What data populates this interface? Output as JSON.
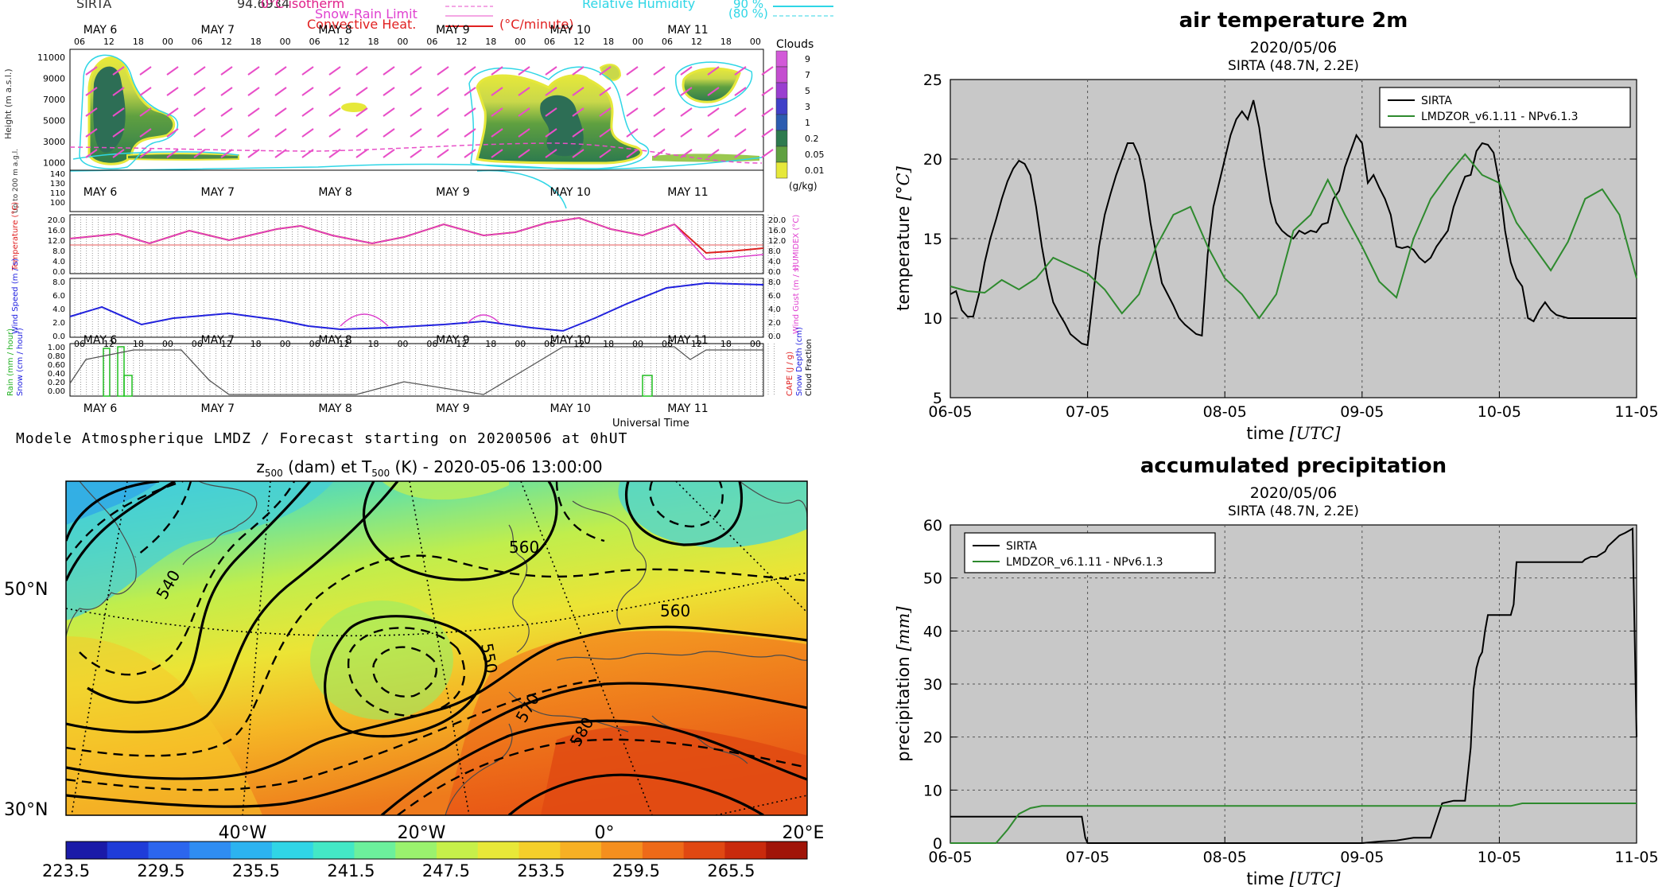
{
  "meteogram": {
    "station": "SIRTA",
    "code": "94.6934",
    "legend": {
      "isotherm": "0°C isotherm",
      "snow_rain": "Snow-Rain Limit",
      "convective": "Convective Heat.",
      "unit": "(°C/minute)",
      "rh_label": "Relative Humidity",
      "rh1": "90 %",
      "rh2": "(80 %)"
    },
    "days": [
      "MAY 6",
      "MAY 7",
      "MAY 8",
      "MAY 9",
      "MAY 10",
      "MAY 11"
    ],
    "hours": [
      "06",
      "12",
      "18",
      "00"
    ],
    "clouds_title": "Clouds",
    "clouds_levels": [
      "9",
      "7",
      "5",
      "3",
      "1",
      "0.2",
      "0.05",
      "0.01"
    ],
    "clouds_unit": "(g/kg)",
    "height_label": "Height (m a.s.l.)",
    "height_ticks": [
      "11000",
      "9000",
      "7000",
      "5000",
      "3000",
      "1000"
    ],
    "low_label": "Up to 200 m a.g.l.",
    "low_ticks": [
      "140",
      "130",
      "110",
      "100"
    ],
    "temp_label": "Temperature (°C)",
    "temp_ticks": [
      "20.0",
      "16.0",
      "12.0",
      "8.0",
      "4.0",
      "0.0"
    ],
    "humidex_label": "HUMIDEX (°C)",
    "wind_label": "Wind Speed (m / s)",
    "wind_ticks": [
      "8.0",
      "6.0",
      "4.0",
      "2.0",
      "0.0"
    ],
    "gust_label": "Wind Gust (m / s)",
    "rain_ticks": [
      "1.00",
      "0.80",
      "0.60",
      "0.40",
      "0.20",
      "0.00"
    ],
    "rain_label": "Rain (mm / hour)",
    "snow_label": "Snow (cm / hour)",
    "cape_label": "CAPE (J / g)",
    "snowdepth_label": "Snow Depth (cm)",
    "cloudfrac_label": "Cloud Fraction",
    "universal_time": "Universal Time",
    "caption": "Modele Atmospherique LMDZ / Forecast starting on 20200506 at 0hUT"
  },
  "map": {
    "title_pre": "z",
    "title_sub1": "500",
    "title_mid": " (dam) et T",
    "title_sub2": "500",
    "title_post": " (K) - 2020-05-06 13:00:00",
    "lat_labels": [
      "50°N",
      "30°N"
    ],
    "lon_labels": [
      "40°W",
      "20°W",
      "0°",
      "20°E"
    ],
    "contour_labels": [
      "540",
      "560",
      "550",
      "560",
      "570",
      "580"
    ],
    "colorbar_ticks": [
      "223.5",
      "229.5",
      "235.5",
      "241.5",
      "247.5",
      "253.5",
      "259.5",
      "265.5"
    ],
    "colorbar_colors": [
      "#1a1aa8",
      "#1f3cd8",
      "#2c66ee",
      "#2f8df2",
      "#2cb3f0",
      "#30d5e6",
      "#43e8c6",
      "#6cf09c",
      "#9af26e",
      "#c6f04a",
      "#e8e838",
      "#f5cf2a",
      "#f7b024",
      "#f58f1e",
      "#ee6a18",
      "#e04812",
      "#c92a0c",
      "#a01408"
    ]
  },
  "chart_data": [
    {
      "type": "line",
      "title": "air temperature 2m",
      "subtitle_date": "2020/05/06",
      "subtitle_site": "SIRTA (48.7N, 2.2E)",
      "xlabel": "time",
      "xunit": "UTC",
      "ylabel": "temperature",
      "yunit": "°C",
      "ylim": [
        5,
        25
      ],
      "yticks": [
        "5",
        "10",
        "15",
        "20",
        "25"
      ],
      "xlim": [
        0,
        120
      ],
      "xticks": [
        "06-05",
        "07-05",
        "08-05",
        "09-05",
        "10-05",
        "11-05"
      ],
      "grid": true,
      "legend_position": "top-right",
      "series": [
        {
          "name": "SIRTA",
          "color": "#000000",
          "x": [
            0,
            1,
            2,
            3,
            4,
            5,
            6,
            7,
            8,
            9,
            10,
            11,
            12,
            13,
            14,
            15,
            16,
            17,
            18,
            19,
            20,
            21,
            22,
            23,
            24,
            25,
            26,
            27,
            28,
            29,
            30,
            31,
            32,
            33,
            34,
            35,
            36,
            37,
            38,
            39,
            40,
            41,
            42,
            43,
            44,
            45,
            46,
            47,
            48,
            49,
            50,
            51,
            52,
            53,
            54,
            55,
            56,
            57,
            58,
            59,
            60,
            61,
            62,
            63,
            64,
            65,
            66,
            67,
            68,
            69,
            70,
            71,
            72,
            73,
            74,
            75,
            76,
            77,
            78,
            79,
            80,
            81,
            82,
            83,
            84,
            85,
            86,
            87,
            88,
            89,
            90,
            91,
            92,
            93,
            94,
            95,
            96,
            97,
            98,
            99,
            100,
            101,
            102,
            103,
            104,
            105,
            106,
            107,
            108,
            109,
            110,
            111,
            112,
            113,
            114,
            115,
            116,
            117,
            118,
            119,
            120
          ],
          "y": [
            11.5,
            11.7,
            10.5,
            10.1,
            10.1,
            11.5,
            13.5,
            15,
            16.2,
            17.5,
            18.6,
            19.4,
            19.9,
            19.7,
            19,
            17,
            14.5,
            12.5,
            11,
            10.3,
            9.7,
            9,
            8.7,
            8.4,
            8.3,
            11.5,
            14.5,
            16.5,
            17.8,
            19,
            20,
            21,
            21,
            20.2,
            18.5,
            16,
            14,
            12.2,
            11.5,
            10.8,
            10,
            9.6,
            9.3,
            9,
            8.9,
            14,
            17,
            18.5,
            20,
            21.5,
            22.5,
            23,
            22.5,
            23.7,
            22,
            19.5,
            17.3,
            16,
            15.5,
            15.2,
            15,
            15.5,
            15.3,
            15.5,
            15.4,
            15.9,
            16,
            17.5,
            18,
            19.5,
            20.5,
            21.5,
            21,
            18.5,
            19,
            18.2,
            17.5,
            16.5,
            14.5,
            14.4,
            14.5,
            14.3,
            13.8,
            13.5,
            13.8,
            14.5,
            15,
            15.5,
            17,
            18,
            18.9,
            19,
            20.5,
            21,
            20.9,
            20.4,
            18.5,
            15.5,
            13.5,
            12.5,
            12,
            10,
            9.8,
            10.5,
            11,
            10.5,
            10.2,
            10.1,
            10,
            10,
            10,
            10,
            10,
            10,
            10,
            10,
            10,
            10,
            10,
            10,
            10
          ]
        },
        {
          "name": "LMDZOR_v6.1.11 - NPv6.1.3",
          "color": "#2e8a2e",
          "x": [
            0,
            3,
            6,
            9,
            12,
            15,
            18,
            21,
            24,
            27,
            30,
            33,
            36,
            39,
            42,
            45,
            48,
            51,
            54,
            57,
            60,
            63,
            66,
            69,
            72,
            75,
            78,
            81,
            84,
            87,
            90,
            93,
            96,
            99,
            102,
            105,
            108,
            111,
            114,
            117,
            120
          ],
          "y": [
            12,
            11.7,
            11.6,
            12.4,
            11.8,
            12.5,
            13.8,
            13.3,
            12.8,
            11.8,
            10.3,
            11.5,
            14.5,
            16.5,
            17,
            14.5,
            12.5,
            11.5,
            10,
            11.5,
            15.5,
            16.5,
            18.7,
            16.5,
            14.5,
            12.3,
            11.3,
            15,
            17.5,
            19,
            20.3,
            19,
            18.5,
            16,
            14.5,
            13,
            14.8,
            17.5,
            18.1,
            16.5,
            12.5
          ]
        }
      ]
    },
    {
      "type": "line",
      "title": "accumulated precipitation",
      "subtitle_date": "2020/05/06",
      "subtitle_site": "SIRTA (48.7N, 2.2E)",
      "xlabel": "time",
      "xunit": "UTC",
      "ylabel": "precipitation",
      "yunit": "mm",
      "ylim": [
        0,
        60
      ],
      "yticks": [
        "0",
        "10",
        "20",
        "30",
        "40",
        "50",
        "60"
      ],
      "xlim": [
        0,
        120
      ],
      "xticks": [
        "06-05",
        "07-05",
        "08-05",
        "09-05",
        "10-05",
        "11-05"
      ],
      "grid": true,
      "legend_position": "top-left",
      "series": [
        {
          "name": "SIRTA",
          "color": "#000000",
          "x": [
            0,
            23,
            23.6,
            24,
            72,
            75,
            78,
            81,
            82,
            84,
            86,
            88,
            90,
            91,
            91.5,
            92,
            92.5,
            93,
            93.5,
            94,
            96,
            98,
            98.5,
            99,
            102,
            104,
            107,
            109,
            110.5,
            111,
            112,
            113,
            114.5,
            115,
            116,
            117,
            118,
            118.8,
            119.3,
            120
          ],
          "y": [
            5,
            5,
            1,
            0,
            0,
            0.3,
            0.5,
            1,
            1,
            1,
            7.5,
            8,
            8,
            18,
            29,
            33,
            35,
            36,
            40,
            43,
            43,
            43,
            45,
            53,
            53,
            53,
            53,
            53,
            53,
            53.5,
            54,
            54,
            55,
            56,
            57,
            58,
            58.5,
            59,
            59.3,
            20
          ]
        },
        {
          "name": "LMDZOR_v6.1.11 - NPv6.1.3",
          "color": "#2e8a2e",
          "x": [
            0,
            8,
            10,
            12,
            14,
            16,
            20,
            24,
            48,
            72,
            96,
            98,
            100,
            104,
            108,
            112,
            120
          ],
          "y": [
            0,
            0,
            2.5,
            5.5,
            6.6,
            7,
            7,
            7,
            7,
            7,
            7,
            7,
            7.5,
            7.5,
            7.5,
            7.5,
            7.5
          ]
        }
      ]
    }
  ]
}
